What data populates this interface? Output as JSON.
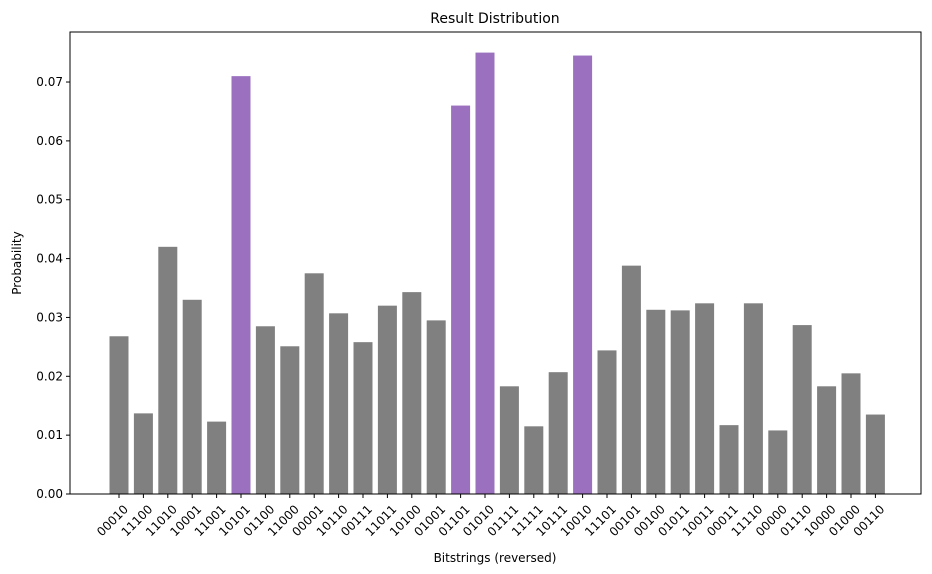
{
  "chart_data": {
    "type": "bar",
    "title": "Result Distribution",
    "xlabel": "Bitstrings (reversed)",
    "ylabel": "Probability",
    "ylim": [
      0,
      0.0785
    ],
    "yticks": [
      0.0,
      0.01,
      0.02,
      0.03,
      0.04,
      0.05,
      0.06,
      0.07
    ],
    "ytick_labels": [
      "0.00",
      "0.01",
      "0.02",
      "0.03",
      "0.04",
      "0.05",
      "0.06",
      "0.07"
    ],
    "grid": false,
    "colors": {
      "default": "#808080",
      "highlight": "#9a70bf"
    },
    "categories": [
      "00010",
      "11100",
      "11010",
      "10001",
      "11001",
      "10101",
      "01100",
      "11000",
      "00001",
      "10110",
      "00111",
      "11011",
      "10100",
      "01001",
      "01101",
      "01010",
      "01111",
      "11111",
      "10111",
      "10010",
      "11101",
      "00101",
      "00100",
      "01011",
      "10011",
      "00011",
      "11110",
      "00000",
      "01110",
      "10000",
      "01000",
      "00110"
    ],
    "values": [
      0.0268,
      0.0137,
      0.042,
      0.033,
      0.0123,
      0.071,
      0.0285,
      0.0251,
      0.0375,
      0.0307,
      0.0258,
      0.032,
      0.0343,
      0.0295,
      0.066,
      0.075,
      0.0183,
      0.0115,
      0.0207,
      0.0745,
      0.0244,
      0.0388,
      0.0313,
      0.0312,
      0.0324,
      0.0117,
      0.0324,
      0.0108,
      0.0287,
      0.0183,
      0.0205,
      0.0135
    ],
    "highlighted": [
      false,
      false,
      false,
      false,
      false,
      true,
      false,
      false,
      false,
      false,
      false,
      false,
      false,
      false,
      true,
      true,
      false,
      false,
      false,
      true,
      false,
      false,
      false,
      false,
      false,
      false,
      false,
      false,
      false,
      false,
      false,
      false
    ]
  }
}
